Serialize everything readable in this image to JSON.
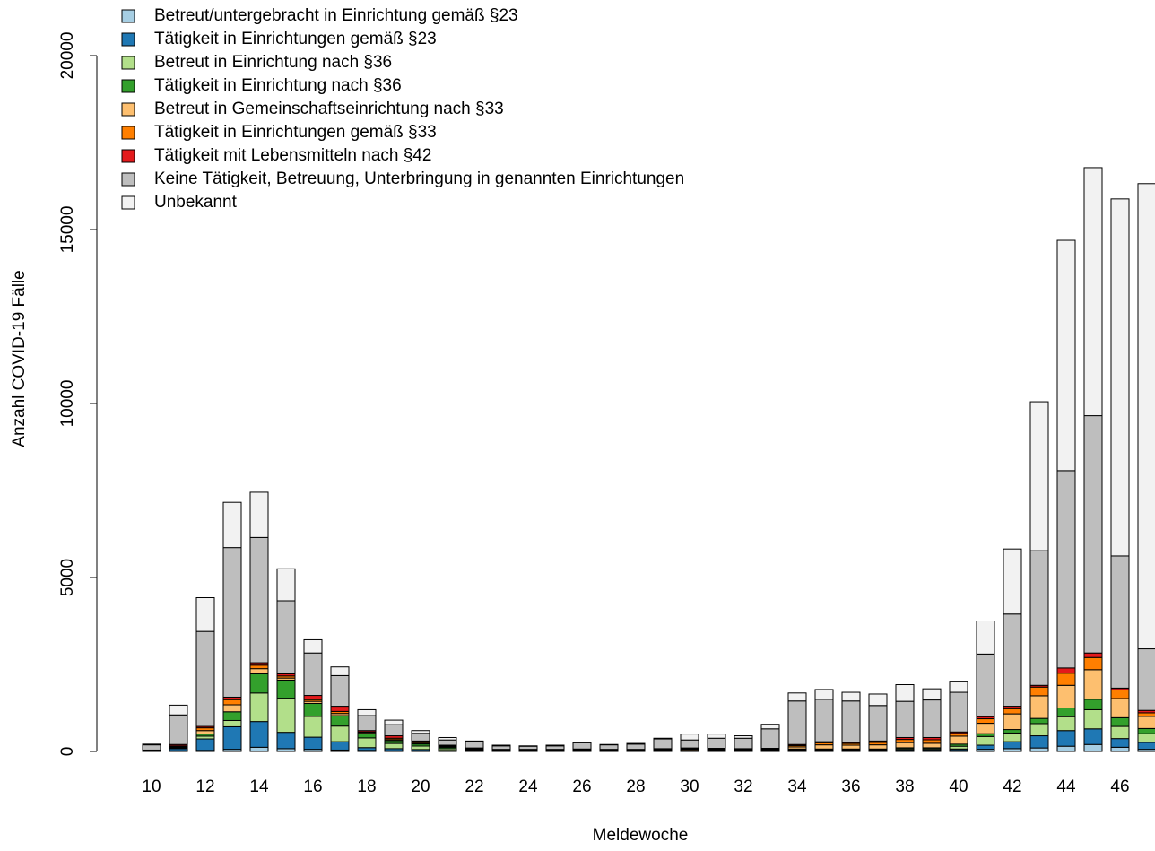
{
  "chart_data": {
    "type": "bar",
    "stacked": true,
    "y_label": "Anzahl COVID-19 Fälle",
    "x_label": "Meldewoche",
    "categories": [
      "10",
      null,
      "12",
      null,
      "14",
      null,
      "16",
      null,
      "18",
      null,
      "20",
      null,
      "22",
      null,
      "24",
      null,
      "26",
      null,
      "28",
      null,
      "30",
      null,
      "32",
      null,
      "34",
      null,
      "36",
      null,
      "38",
      null,
      "40",
      null,
      "42",
      null,
      "44",
      null,
      "46",
      null
    ],
    "ylim": [
      0,
      20000
    ],
    "yticks": [
      0,
      5000,
      10000,
      15000,
      20000
    ],
    "series": [
      {
        "name": "Betreut/untergebracht in Einrichtung gemäß §23",
        "color": "#a6cee3",
        "values": [
          5,
          20,
          30,
          60,
          120,
          80,
          60,
          40,
          30,
          20,
          15,
          10,
          5,
          5,
          5,
          5,
          5,
          5,
          5,
          5,
          5,
          5,
          5,
          5,
          10,
          10,
          10,
          10,
          15,
          15,
          30,
          60,
          80,
          100,
          150,
          200,
          120,
          60
        ]
      },
      {
        "name": "Tätigkeit in Einrichtungen gemäß §23",
        "color": "#1f78b4",
        "values": [
          10,
          60,
          330,
          650,
          740,
          470,
          350,
          240,
          80,
          60,
          40,
          20,
          10,
          5,
          5,
          5,
          10,
          5,
          5,
          10,
          10,
          10,
          10,
          10,
          20,
          20,
          20,
          20,
          30,
          30,
          40,
          120,
          200,
          350,
          450,
          450,
          250,
          200
        ]
      },
      {
        "name": "Betreut in Einrichtung nach §36",
        "color": "#b2df8a",
        "values": [
          5,
          20,
          80,
          180,
          820,
          980,
          600,
          450,
          280,
          150,
          100,
          50,
          20,
          10,
          10,
          10,
          10,
          10,
          10,
          10,
          10,
          10,
          10,
          10,
          20,
          20,
          20,
          20,
          30,
          30,
          80,
          250,
          250,
          350,
          400,
          550,
          350,
          250
        ]
      },
      {
        "name": "Tätigkeit in Einrichtung nach §36",
        "color": "#33a02c",
        "values": [
          5,
          20,
          60,
          250,
          550,
          520,
          370,
          300,
          120,
          80,
          60,
          40,
          20,
          10,
          10,
          10,
          10,
          10,
          10,
          10,
          10,
          10,
          10,
          10,
          20,
          20,
          20,
          20,
          30,
          30,
          60,
          80,
          100,
          150,
          250,
          300,
          250,
          150
        ]
      },
      {
        "name": "Betreut in Gemeinschaftseinrichtung nach §33",
        "color": "#fdbf6f",
        "values": [
          5,
          20,
          100,
          200,
          150,
          60,
          60,
          60,
          30,
          30,
          25,
          20,
          15,
          10,
          10,
          10,
          10,
          10,
          10,
          15,
          30,
          20,
          15,
          20,
          60,
          120,
          110,
          120,
          150,
          130,
          230,
          300,
          450,
          650,
          650,
          850,
          550,
          350
        ]
      },
      {
        "name": "Tätigkeit in Einrichtungen gemäß §33",
        "color": "#ff7f00",
        "values": [
          5,
          20,
          80,
          150,
          100,
          60,
          50,
          60,
          20,
          40,
          30,
          20,
          15,
          10,
          10,
          10,
          10,
          10,
          10,
          15,
          20,
          20,
          15,
          20,
          40,
          60,
          50,
          70,
          90,
          100,
          80,
          130,
          150,
          250,
          350,
          350,
          250,
          100
        ]
      },
      {
        "name": "Tätigkeit mit Lebensmitteln nach §42",
        "color": "#e31a1c",
        "values": [
          5,
          40,
          40,
          70,
          70,
          60,
          120,
          150,
          40,
          70,
          30,
          20,
          15,
          10,
          10,
          10,
          15,
          10,
          10,
          15,
          15,
          15,
          15,
          15,
          30,
          30,
          30,
          40,
          55,
          65,
          40,
          60,
          70,
          50,
          150,
          130,
          50,
          70
        ]
      },
      {
        "name": "Keine Tätigkeit, Betreuung, Unterbringung in genannten Einrichtungen",
        "color": "#bebebe",
        "values": [
          150,
          850,
          2730,
          4300,
          3600,
          2100,
          1220,
          880,
          430,
          320,
          220,
          150,
          180,
          100,
          90,
          100,
          180,
          130,
          150,
          280,
          230,
          290,
          300,
          560,
          1250,
          1220,
          1190,
          1020,
          1040,
          1080,
          1140,
          1800,
          2650,
          3870,
          5670,
          6820,
          3800,
          1770
        ]
      },
      {
        "name": "Unbekannt",
        "color": "#f2f2f2",
        "values": [
          20,
          280,
          970,
          1300,
          1300,
          920,
          380,
          250,
          170,
          130,
          80,
          70,
          20,
          20,
          10,
          20,
          10,
          10,
          20,
          20,
          170,
          120,
          70,
          130,
          230,
          280,
          250,
          330,
          480,
          320,
          320,
          950,
          1870,
          4280,
          6620,
          7130,
          10260,
          13370
        ]
      }
    ]
  }
}
